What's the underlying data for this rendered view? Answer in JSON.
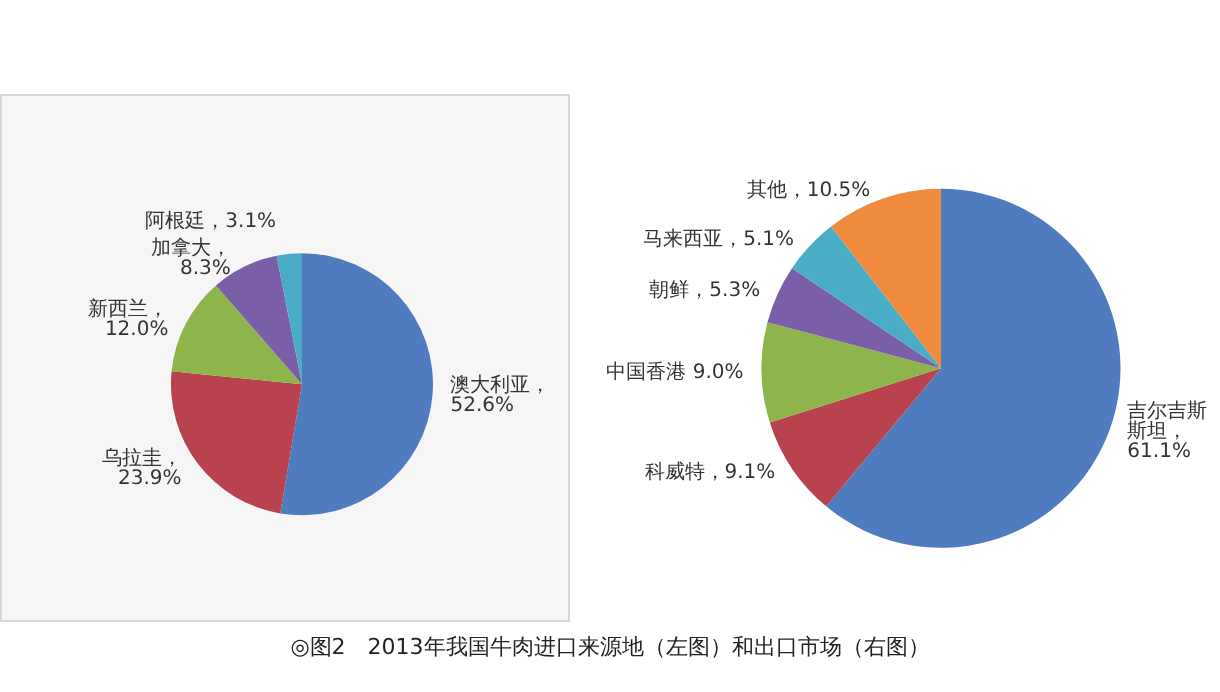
{
  "chart_data": [
    {
      "type": "pie",
      "categories": [
        "澳大利亚",
        "乌拉圭",
        "新西兰",
        "加拿大",
        "阿根廷"
      ],
      "values": [
        52.6,
        23.9,
        12.0,
        8.3,
        3.1
      ],
      "colors": [
        "#4f7bbf",
        "#b8434e",
        "#8db54b",
        "#7a5ea8",
        "#4bacc6"
      ],
      "value_labels": [
        "，52.6%",
        "，23.9%",
        "，12.0%",
        "，8.3%",
        "，3.1%"
      ],
      "annotations": [
        "◎图2　2013年我国牛肉进口来源地（左图）和出口市场（右图）"
      ]
    },
    {
      "type": "pie",
      "categories": [
        "吉尔吉斯斯坦",
        "科威特",
        "中国香港",
        "朝鲜",
        "马来西亚",
        "其他"
      ],
      "values": [
        61.1,
        9.1,
        9.0,
        5.3,
        5.1,
        10.5
      ],
      "colors": [
        "#4f7bbf",
        "#b8434e",
        "#8db54b",
        "#7a5ea8",
        "#4bacc6",
        "#f08a3c"
      ],
      "value_labels": [
        "，61.1%",
        "，9.1%",
        " 9.0%",
        "，5.3%",
        "，5.1%",
        "，10.5%"
      ]
    }
  ]
}
